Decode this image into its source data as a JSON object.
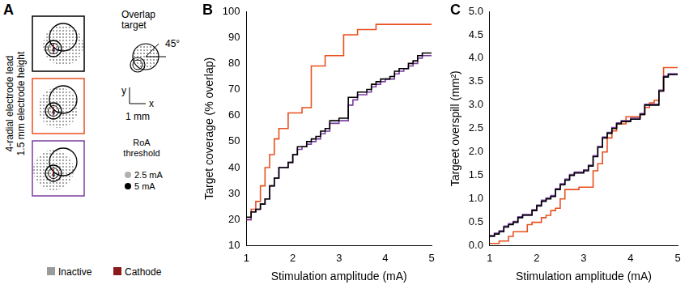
{
  "panel_labels": [
    "A",
    "B",
    "C"
  ],
  "diagram": {
    "side_label": [
      "4-radial electrode lead",
      "1.5 mm electrode height"
    ],
    "electrode_label": "4",
    "target_title": [
      "Overlap",
      "target"
    ],
    "angle_label": "45°",
    "axis_labels": [
      "y",
      "x"
    ],
    "scale_label": "1 mm",
    "threshold_title": [
      "RoA",
      "threshold"
    ],
    "threshold_items": [
      "2.5 mA",
      "5 mA"
    ],
    "legend_items": [
      {
        "label": "Inactive",
        "color": "#9a9a9a"
      },
      {
        "label": "Cathode",
        "color": "#8b1a1a"
      }
    ]
  },
  "chart_data": [
    {
      "type": "line",
      "x_label": "Stimulation amplitude (mA)",
      "y_label": "Target coverage (% overlap)",
      "x": [
        1.0,
        1.1,
        1.2,
        1.3,
        1.4,
        1.5,
        1.6,
        1.7,
        1.8,
        1.9,
        2.0,
        2.1,
        2.2,
        2.3,
        2.4,
        2.5,
        2.6,
        2.7,
        2.8,
        2.9,
        3.0,
        3.1,
        3.2,
        3.3,
        3.4,
        3.5,
        3.6,
        3.7,
        3.8,
        3.9,
        4.0,
        4.1,
        4.2,
        4.3,
        4.4,
        4.5,
        4.6,
        4.7,
        4.8,
        4.9,
        5.0
      ],
      "xlim": [
        1,
        5
      ],
      "xticks": [
        1,
        2,
        3,
        4,
        5
      ],
      "ylim": [
        10,
        100
      ],
      "yticks": [
        10,
        20,
        30,
        40,
        50,
        60,
        70,
        80,
        90,
        100
      ],
      "grid": false,
      "line_style": "steps",
      "series": [
        {
          "color": "#000000",
          "values": [
            21,
            23,
            24,
            26,
            28,
            33,
            36,
            40,
            40,
            42,
            45,
            48,
            48,
            50,
            51,
            52,
            54,
            55,
            58,
            58,
            59,
            59,
            67,
            67,
            69,
            69,
            70,
            72,
            73,
            74,
            74,
            75,
            77,
            78,
            78,
            80,
            81,
            83,
            84,
            84,
            84
          ]
        },
        {
          "color": "#7b3fa0",
          "values": [
            20,
            23,
            24,
            26,
            28,
            33,
            36,
            40,
            40,
            42,
            45,
            47,
            48,
            49,
            50,
            51,
            53,
            54,
            57,
            57,
            58,
            58,
            64,
            66,
            68,
            68,
            69,
            71,
            72,
            73,
            74,
            74,
            76,
            77,
            78,
            79,
            80,
            82,
            83,
            83,
            83
          ]
        },
        {
          "color": "#e8501e",
          "values": [
            20,
            24,
            27,
            33,
            40,
            45,
            51,
            55,
            55,
            61,
            61,
            61,
            63,
            63,
            79,
            79,
            79,
            83,
            83,
            83,
            83,
            91,
            91,
            91,
            93,
            93,
            93,
            93,
            95,
            95,
            95,
            95,
            95,
            95,
            95,
            95,
            95,
            95,
            95,
            95,
            95
          ]
        }
      ]
    },
    {
      "type": "line",
      "x_label": "Stimulation amplitude (mA)",
      "y_label": "Targeet overspill (mm²)",
      "x": [
        1.0,
        1.1,
        1.2,
        1.3,
        1.4,
        1.5,
        1.6,
        1.7,
        1.8,
        1.9,
        2.0,
        2.1,
        2.2,
        2.3,
        2.4,
        2.5,
        2.6,
        2.7,
        2.8,
        2.9,
        3.0,
        3.1,
        3.2,
        3.3,
        3.4,
        3.5,
        3.6,
        3.7,
        3.8,
        3.9,
        4.0,
        4.1,
        4.2,
        4.3,
        4.4,
        4.5,
        4.6,
        4.7,
        4.8,
        4.9,
        5.0
      ],
      "xlim": [
        1,
        5
      ],
      "xticks": [
        1,
        2,
        3,
        4,
        5
      ],
      "ylim": [
        0,
        5
      ],
      "yticks": [
        {
          "value": 0,
          "label": "0.0"
        },
        {
          "value": 0.5,
          "label": "0.5"
        },
        {
          "value": 1,
          "label": "1.0"
        },
        {
          "value": 1.5,
          "label": "1.5"
        },
        {
          "value": 2,
          "label": "2.0"
        },
        {
          "value": 2.5,
          "label": "2.5"
        },
        {
          "value": 3,
          "label": "3.0"
        },
        {
          "value": 3.5,
          "label": "3.5"
        },
        {
          "value": 4,
          "label": "4.0"
        },
        {
          "value": 4.5,
          "label": "4.5"
        },
        {
          "value": 5,
          "label": "5.0"
        }
      ],
      "grid": false,
      "line_style": "steps",
      "series": [
        {
          "color": "#000000",
          "values": [
            0.2,
            0.25,
            0.3,
            0.4,
            0.45,
            0.5,
            0.6,
            0.65,
            0.65,
            0.75,
            0.85,
            0.95,
            1.0,
            1.05,
            1.2,
            1.3,
            1.4,
            1.5,
            1.55,
            1.55,
            1.6,
            1.7,
            1.9,
            2.1,
            2.3,
            2.4,
            2.5,
            2.6,
            2.65,
            2.65,
            2.7,
            2.7,
            2.8,
            3.0,
            3.0,
            3.0,
            3.3,
            3.6,
            3.65,
            3.65,
            3.65
          ]
        },
        {
          "color": "#7b3fa0",
          "values": [
            0.22,
            0.27,
            0.32,
            0.42,
            0.47,
            0.52,
            0.62,
            0.67,
            0.67,
            0.77,
            0.87,
            0.97,
            1.02,
            1.07,
            1.22,
            1.32,
            1.42,
            1.52,
            1.57,
            1.57,
            1.62,
            1.72,
            1.92,
            2.12,
            2.32,
            2.42,
            2.52,
            2.62,
            2.67,
            2.67,
            2.72,
            2.72,
            2.82,
            3.02,
            3.02,
            3.02,
            3.32,
            3.62,
            3.67,
            3.67,
            3.67
          ]
        },
        {
          "color": "#e8501e",
          "values": [
            0.05,
            0.05,
            0.1,
            0.1,
            0.2,
            0.3,
            0.3,
            0.3,
            0.45,
            0.5,
            0.5,
            0.6,
            0.65,
            0.75,
            0.8,
            1.0,
            1.2,
            1.2,
            1.2,
            1.25,
            1.25,
            1.25,
            1.6,
            1.75,
            2.0,
            2.3,
            2.45,
            2.6,
            2.6,
            2.75,
            2.75,
            2.75,
            2.8,
            2.95,
            3.05,
            3.1,
            3.3,
            3.8,
            3.8,
            3.8,
            3.8
          ]
        }
      ]
    }
  ]
}
